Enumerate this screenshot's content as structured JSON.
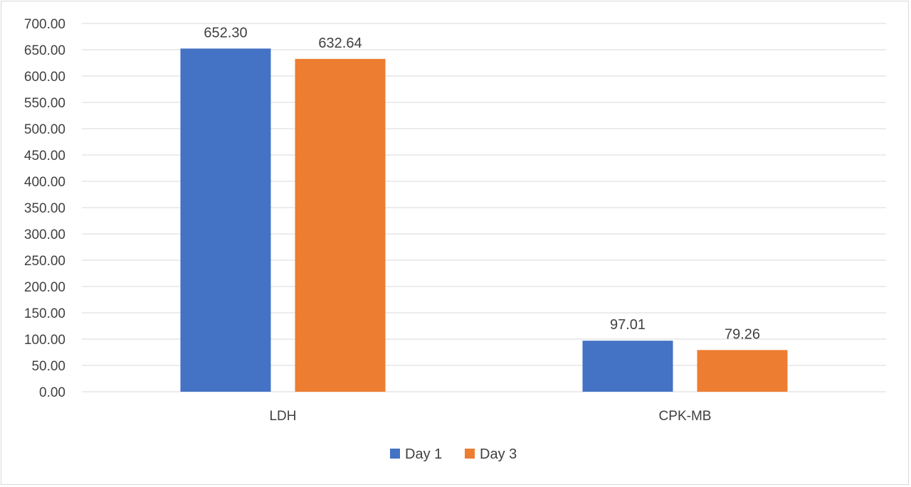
{
  "chart_data": {
    "type": "bar",
    "categories": [
      "LDH",
      "CPK-MB"
    ],
    "series": [
      {
        "name": "Day 1",
        "values": [
          652.3,
          97.01
        ],
        "labels": [
          "652.30",
          "97.01"
        ],
        "color": "#4472c4"
      },
      {
        "name": "Day 3",
        "values": [
          632.64,
          79.26
        ],
        "labels": [
          "632.64",
          "79.26"
        ],
        "color": "#ed7d31"
      }
    ],
    "ylim": [
      0,
      700
    ],
    "yticks": [
      "0.00",
      "50.00",
      "100.00",
      "150.00",
      "200.00",
      "250.00",
      "300.00",
      "350.00",
      "400.00",
      "450.00",
      "500.00",
      "550.00",
      "600.00",
      "650.00",
      "700.00"
    ],
    "grid": true,
    "legend_position": "bottom",
    "title": "",
    "xlabel": "",
    "ylabel": "",
    "gridline_color": "#d9d9d9",
    "text_color": "#404040"
  }
}
